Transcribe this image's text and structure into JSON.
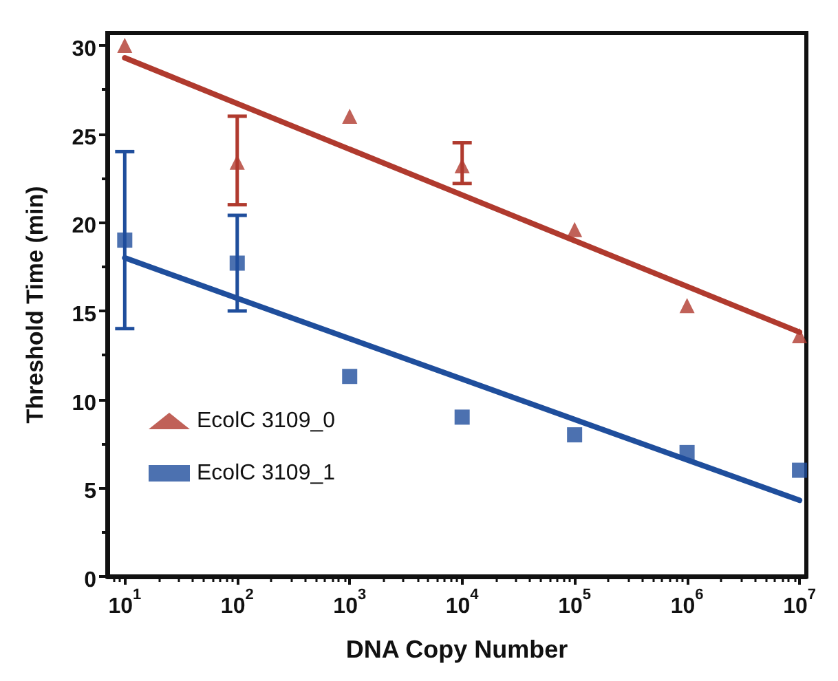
{
  "chart_data": {
    "type": "scatter",
    "xlabel": "DNA Copy Number",
    "ylabel": "Threshold Time (min)",
    "log": "x",
    "xlim": [
      7,
      11500000
    ],
    "xticks": [
      {
        "value": 10,
        "label": "10$^{1}$"
      },
      {
        "value": 100,
        "label": "10$^{2}$"
      },
      {
        "value": 1000,
        "label": "10$^{3}$"
      },
      {
        "value": 10000,
        "label": "10$^{4}$"
      },
      {
        "value": 100000,
        "label": "10$^{5}$"
      },
      {
        "value": 1000000,
        "label": "10$^{6}$"
      },
      {
        "value": 10000000,
        "label": "10$^{7}$"
      }
    ],
    "ylim": [
      0,
      30.7
    ],
    "yticks": [
      0,
      5,
      10,
      15,
      20,
      25,
      30
    ],
    "grid": false,
    "legend": "left",
    "series": [
      {
        "name": "EcolC 3109_0",
        "color": "#b03a2e",
        "marker": "triangle",
        "x": [
          10,
          100,
          1000,
          10000,
          100000,
          1000000,
          10000000
        ],
        "values": [
          30,
          23.4,
          26,
          23.2,
          19.6,
          15.3,
          13.6
        ],
        "errors": [
          null,
          [
            21,
            26
          ],
          null,
          [
            22.2,
            24.5
          ],
          null,
          null,
          null
        ]
      },
      {
        "name": "EcolC 3109_1",
        "color": "#1f4e9c",
        "marker": "square",
        "x": [
          10,
          100,
          1000,
          10000,
          100000,
          1000000,
          10000000
        ],
        "values": [
          19,
          17.7,
          11.3,
          9,
          8,
          7,
          6
        ],
        "errors": [
          [
            14,
            24
          ],
          [
            15,
            20.4
          ],
          null,
          null,
          null,
          null,
          null
        ]
      },
      {
        "type": "line",
        "color": "#b03a2e",
        "x": [
          10,
          10000000
        ],
        "values": [
          29.3,
          13.8
        ]
      },
      {
        "type": "line",
        "color": "#1f4e9c",
        "x": [
          10,
          10000000
        ],
        "values": [
          18,
          4.3
        ]
      }
    ]
  }
}
